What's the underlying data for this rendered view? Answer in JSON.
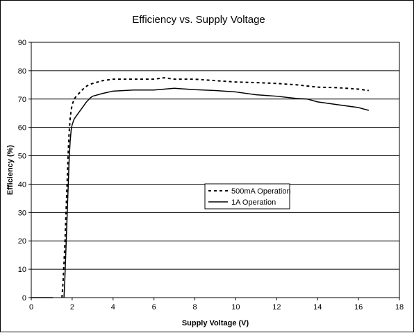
{
  "chart_data": {
    "type": "line",
    "title": "Efficiency vs. Supply Voltage",
    "xlabel": "Supply Voltage (V)",
    "ylabel": "Efficiency (%)",
    "xlim": [
      0,
      18
    ],
    "ylim": [
      0,
      90
    ],
    "xticks": [
      0,
      2,
      4,
      6,
      8,
      10,
      12,
      14,
      16,
      18
    ],
    "yticks": [
      0,
      10,
      20,
      30,
      40,
      50,
      60,
      70,
      80,
      90
    ],
    "grid": "horizontal",
    "legend_position": "center-right",
    "series": [
      {
        "name": "500mA Operation",
        "style": "dashed",
        "color": "#000000",
        "x": [
          1.5,
          1.55,
          1.6,
          1.65,
          1.7,
          1.75,
          1.8,
          1.85,
          1.9,
          1.95,
          2.0,
          2.1,
          2.2,
          2.4,
          2.6,
          2.8,
          3.0,
          3.5,
          4.0,
          5.0,
          6.0,
          6.5,
          7.0,
          8.0,
          9.0,
          10.0,
          11.0,
          12.0,
          13.0,
          14.0,
          15.0,
          16.0,
          16.5
        ],
        "y": [
          0,
          5,
          12,
          20,
          30,
          40,
          50,
          58,
          63,
          66,
          68,
          70,
          71,
          72.5,
          74,
          75,
          75.5,
          76.5,
          77,
          77,
          77,
          77.5,
          77,
          77,
          76.5,
          76,
          75.8,
          75.5,
          75,
          74.2,
          74,
          73.5,
          73
        ]
      },
      {
        "name": "1A Operation",
        "style": "solid",
        "color": "#000000",
        "x": [
          1.6,
          1.65,
          1.7,
          1.75,
          1.8,
          1.85,
          1.9,
          1.95,
          2.0,
          2.1,
          2.3,
          2.5,
          2.7,
          2.9,
          3.0,
          3.5,
          4.0,
          5.0,
          6.0,
          7.0,
          8.0,
          9.0,
          10.0,
          11.0,
          12.0,
          13.0,
          13.5,
          14.0,
          15.0,
          16.0,
          16.5
        ],
        "y": [
          0,
          8,
          18,
          28,
          38,
          48,
          55,
          59,
          61,
          63,
          65,
          67,
          69,
          70.5,
          71,
          72,
          72.8,
          73.2,
          73.2,
          73.8,
          73.3,
          73,
          72.5,
          71.5,
          71,
          70.2,
          70,
          69,
          68,
          67,
          66
        ]
      }
    ],
    "baseline_segment": {
      "x": [
        0,
        1.05
      ],
      "y": [
        0,
        0
      ]
    }
  }
}
